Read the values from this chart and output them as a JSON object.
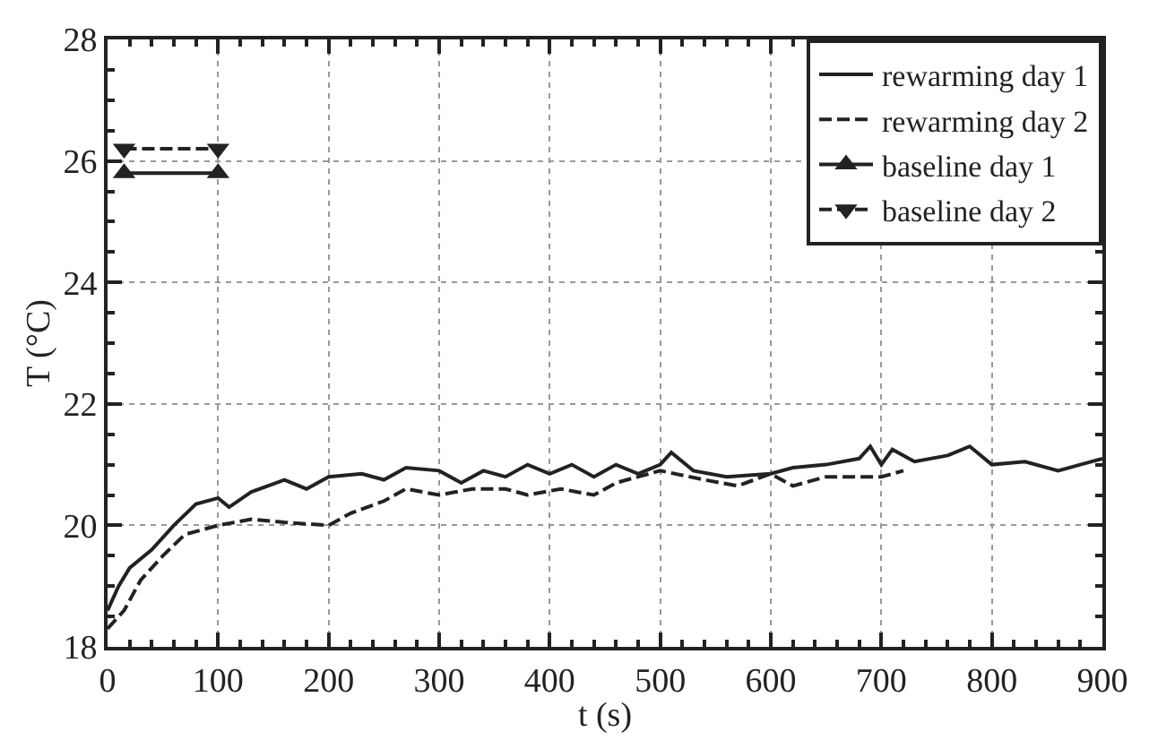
{
  "chart_data": {
    "type": "line",
    "xlabel": "t (s)",
    "ylabel": "T (°C)",
    "xlim": [
      0,
      900
    ],
    "ylim": [
      18,
      28
    ],
    "xticks": [
      0,
      100,
      200,
      300,
      400,
      500,
      600,
      700,
      800,
      900
    ],
    "yticks": [
      18,
      20,
      22,
      24,
      26,
      28
    ],
    "grid": true,
    "legend": "top right",
    "series": [
      {
        "name": "rewarming day 1",
        "color": "#222222",
        "line_style": "solid",
        "marker": "none",
        "x": [
          0,
          10,
          20,
          40,
          60,
          80,
          100,
          110,
          130,
          160,
          180,
          200,
          230,
          250,
          270,
          300,
          320,
          340,
          360,
          380,
          400,
          420,
          440,
          460,
          480,
          500,
          510,
          530,
          560,
          600,
          620,
          650,
          680,
          690,
          700,
          710,
          730,
          760,
          780,
          800,
          830,
          860,
          880,
          900
        ],
        "values": [
          18.6,
          19.0,
          19.3,
          19.6,
          20.0,
          20.35,
          20.45,
          20.3,
          20.55,
          20.75,
          20.6,
          20.8,
          20.85,
          20.75,
          20.95,
          20.9,
          20.7,
          20.9,
          20.8,
          21.0,
          20.85,
          21.0,
          20.8,
          21.0,
          20.85,
          21.0,
          21.2,
          20.9,
          20.8,
          20.85,
          20.95,
          21.0,
          21.1,
          21.3,
          21.0,
          21.25,
          21.05,
          21.15,
          21.3,
          21.0,
          21.05,
          20.9,
          21.0,
          21.1
        ]
      },
      {
        "name": "rewarming day 2",
        "color": "#222222",
        "line_style": "dashed",
        "marker": "none",
        "x": [
          0,
          15,
          30,
          50,
          70,
          100,
          130,
          160,
          200,
          220,
          250,
          270,
          300,
          330,
          360,
          380,
          410,
          440,
          460,
          480,
          500,
          540,
          570,
          600,
          620,
          650,
          700,
          720
        ],
        "values": [
          18.3,
          18.6,
          19.1,
          19.5,
          19.85,
          20.0,
          20.1,
          20.05,
          20.0,
          20.2,
          20.4,
          20.6,
          20.5,
          20.6,
          20.6,
          20.5,
          20.6,
          20.5,
          20.7,
          20.8,
          20.9,
          20.75,
          20.65,
          20.85,
          20.65,
          20.8,
          20.8,
          20.9
        ]
      },
      {
        "name": "baseline day 1",
        "color": "#222222",
        "line_style": "solid",
        "marker": "triangle",
        "x": [
          15,
          100
        ],
        "values": [
          25.8,
          25.8
        ]
      },
      {
        "name": "baseline day 2",
        "color": "#222222",
        "line_style": "dashed",
        "marker": "triangle-down",
        "x": [
          15,
          100
        ],
        "values": [
          26.2,
          26.2
        ]
      }
    ]
  }
}
